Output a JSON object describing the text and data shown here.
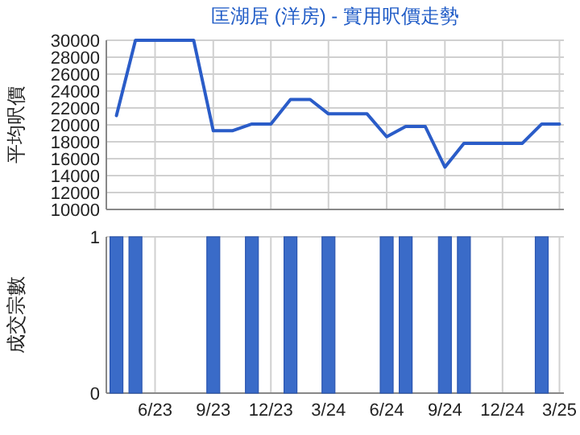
{
  "chart_data": [
    {
      "type": "line",
      "title": "匡湖居 (洋房) - 實用呎價走勢",
      "ylabel": "平均呎價",
      "x": [
        "2023-04",
        "2023-05",
        "2023-06",
        "2023-07",
        "2023-08",
        "2023-09",
        "2023-10",
        "2023-11",
        "2023-12",
        "2024-01",
        "2024-02",
        "2024-03",
        "2024-04",
        "2024-05",
        "2024-06",
        "2024-07",
        "2024-08",
        "2024-09",
        "2024-10",
        "2024-11",
        "2024-12",
        "2025-01",
        "2025-02",
        "2025-03"
      ],
      "series": [
        {
          "color": "#2a5cc8",
          "values": [
            21100,
            30000,
            30000,
            30000,
            30000,
            19300,
            19300,
            20100,
            20100,
            23000,
            23000,
            21300,
            21300,
            21300,
            18600,
            19800,
            19800,
            15000,
            17800,
            17800,
            17800,
            17800,
            20100,
            20100
          ]
        }
      ],
      "xlim": [
        "2023-03-16",
        "2025-03-08"
      ],
      "xticks": [
        {
          "value": "2023-06",
          "label": null
        },
        {
          "value": "2023-09",
          "label": null
        },
        {
          "value": "2023-12",
          "label": null
        },
        {
          "value": "2024-03",
          "label": null
        },
        {
          "value": "2024-06",
          "label": null
        },
        {
          "value": "2024-09",
          "label": null
        },
        {
          "value": "2024-12",
          "label": null
        },
        {
          "value": "2025-03",
          "label": null
        }
      ],
      "ylim": [
        10000,
        30000
      ],
      "yticks": [
        10000,
        12000,
        14000,
        16000,
        18000,
        20000,
        22000,
        24000,
        26000,
        28000,
        30000
      ],
      "tick_labels": "y",
      "grid": true,
      "line_style": "solid",
      "marker": "none"
    },
    {
      "type": "bar",
      "ylabel": "成交宗數",
      "x": [
        "2023-04",
        "2023-05",
        "2023-06",
        "2023-07",
        "2023-08",
        "2023-09",
        "2023-10",
        "2023-11",
        "2023-12",
        "2024-01",
        "2024-02",
        "2024-03",
        "2024-04",
        "2024-05",
        "2024-06",
        "2024-07",
        "2024-08",
        "2024-09",
        "2024-10",
        "2024-11",
        "2024-12",
        "2025-01",
        "2025-02",
        "2025-03"
      ],
      "series": [
        {
          "color": "#3a6bc8",
          "values": [
            1,
            1,
            0,
            0,
            0,
            1,
            0,
            1,
            0,
            1,
            0,
            1,
            0,
            0,
            1,
            1,
            0,
            1,
            1,
            0,
            0,
            0,
            1,
            0
          ]
        }
      ],
      "xlim": [
        "2023-03-16",
        "2025-03-08"
      ],
      "xticks": [
        {
          "value": "2023-06",
          "label": "6/23"
        },
        {
          "value": "2023-09",
          "label": "9/23"
        },
        {
          "value": "2023-12",
          "label": "12/23"
        },
        {
          "value": "2024-03",
          "label": "3/24"
        },
        {
          "value": "2024-06",
          "label": "6/24"
        },
        {
          "value": "2024-09",
          "label": "9/24"
        },
        {
          "value": "2024-12",
          "label": "12/24"
        },
        {
          "value": "2025-03",
          "label": "3/25"
        }
      ],
      "ylim": [
        0,
        1
      ],
      "yticks": [
        0,
        1
      ],
      "grid": true
    }
  ]
}
